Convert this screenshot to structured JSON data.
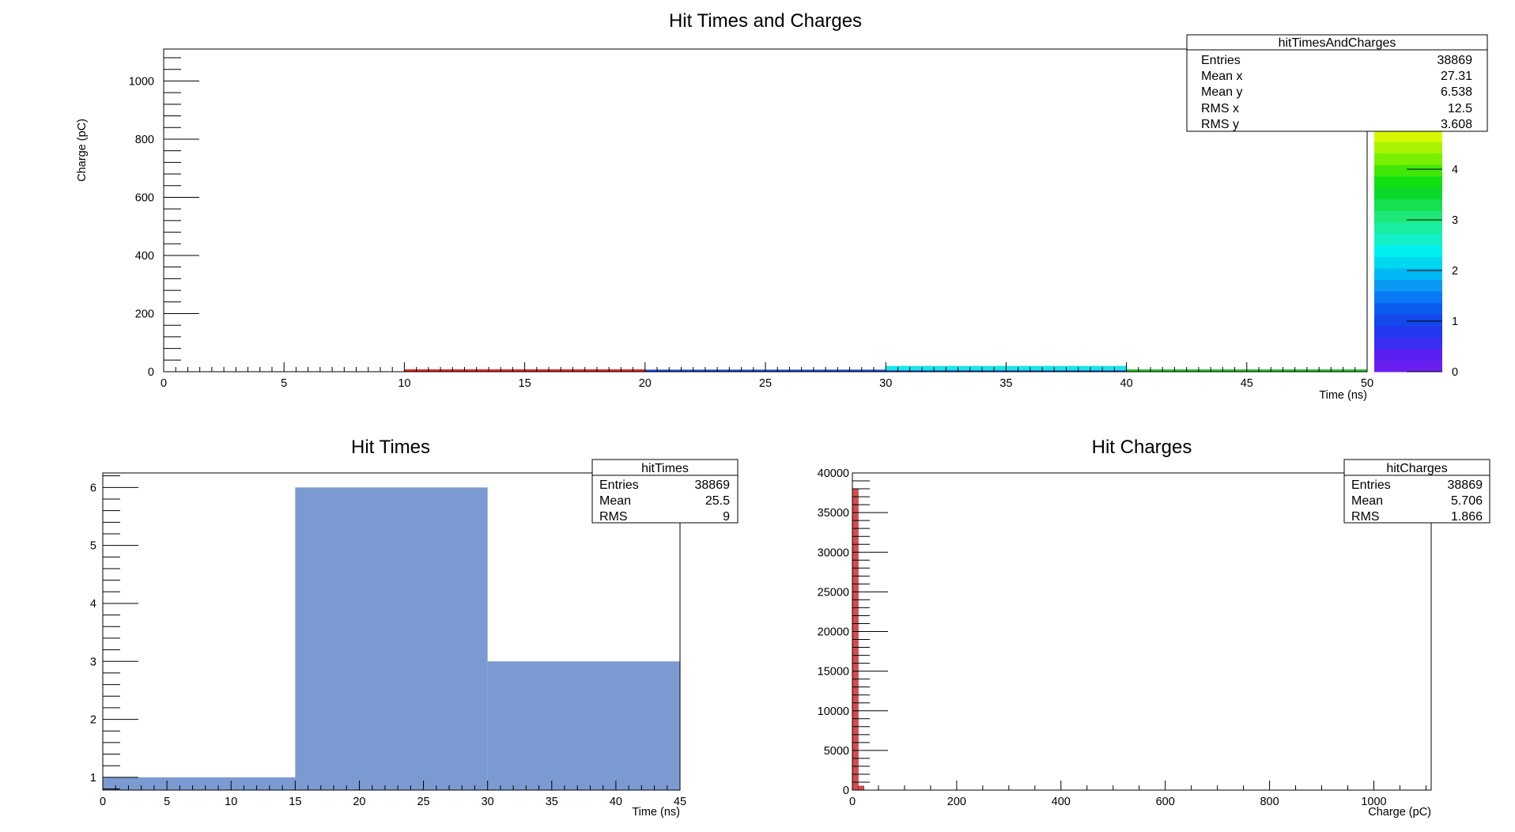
{
  "chart_data": [
    {
      "id": "top",
      "type": "heatmap",
      "title": "Hit Times and Charges",
      "xlabel": "Time (ns)",
      "ylabel": "Charge (pC)",
      "xlim": [
        0,
        50
      ],
      "ylim": [
        0,
        1110
      ],
      "xticks": [
        0,
        5,
        10,
        15,
        20,
        25,
        30,
        35,
        40,
        45,
        50
      ],
      "yticks": [
        0,
        200,
        400,
        600,
        800,
        1000
      ],
      "cells": [
        {
          "x0": 10,
          "x1": 20,
          "y0": 0,
          "y1": 8,
          "level": 1.0,
          "color": "#e0261f"
        },
        {
          "x0": 20,
          "x1": 30,
          "y0": 0,
          "y1": 7,
          "level": 1.0,
          "color": "#1447c9"
        },
        {
          "x0": 30,
          "x1": 40,
          "y0": 0,
          "y1": 5,
          "level": 1.0,
          "color": "#1447c9"
        },
        {
          "x0": 30,
          "x1": 40,
          "y0": 5,
          "y1": 20,
          "level": 2.0,
          "color": "#19e6e6"
        },
        {
          "x0": 40,
          "x1": 50,
          "y0": 0,
          "y1": 8,
          "level": 3.0,
          "color": "#27c42b"
        }
      ],
      "palette": {
        "zlim": [
          0,
          5
        ],
        "ticks": [
          0,
          1,
          2,
          3,
          4
        ],
        "colors": [
          "#6a1ff0",
          "#5a20f2",
          "#3a2ef4",
          "#2238f0",
          "#1448ec",
          "#0a5cf0",
          "#0a78f4",
          "#0a98f4",
          "#00b8f4",
          "#00d8f0",
          "#00f0f0",
          "#14f0c8",
          "#19eea0",
          "#1ee878",
          "#14e050",
          "#0ad82a",
          "#10e010",
          "#40e808",
          "#78f000",
          "#a8f400",
          "#d8f800",
          "#f8f800"
        ]
      },
      "stats": {
        "name": "hitTimesAndCharges",
        "rows": [
          {
            "label": "Entries",
            "value": "38869"
          },
          {
            "label": "Mean x",
            "value": "27.31"
          },
          {
            "label": "Mean y",
            "value": "6.538"
          },
          {
            "label": "RMS x",
            "value": "12.5"
          },
          {
            "label": "RMS y",
            "value": "3.608"
          }
        ]
      }
    },
    {
      "id": "times",
      "type": "bar",
      "title": "Hit Times",
      "xlabel": "Time (ns)",
      "ylabel": "",
      "xlim": [
        0,
        45
      ],
      "ylim": [
        0.78,
        6.25
      ],
      "xticks": [
        0,
        5,
        10,
        15,
        20,
        25,
        30,
        35,
        40,
        45
      ],
      "yticks": [
        1,
        2,
        3,
        4,
        5,
        6
      ],
      "color": "#7b9ad1",
      "bins": [
        {
          "x0": 0,
          "x1": 15,
          "value": 1
        },
        {
          "x0": 15,
          "x1": 30,
          "value": 6
        },
        {
          "x0": 30,
          "x1": 45,
          "value": 3
        }
      ],
      "stats": {
        "name": "hitTimes",
        "rows": [
          {
            "label": "Entries",
            "value": "38869"
          },
          {
            "label": "Mean",
            "value": "25.5"
          },
          {
            "label": "RMS",
            "value": "9"
          }
        ]
      }
    },
    {
      "id": "charges",
      "type": "bar",
      "title": "Hit Charges",
      "xlabel": "Charge (pC)",
      "ylabel": "",
      "xlim": [
        0,
        1110
      ],
      "ylim": [
        0,
        40000
      ],
      "xticks": [
        0,
        200,
        400,
        600,
        800,
        1000
      ],
      "yticks": [
        0,
        5000,
        10000,
        15000,
        20000,
        25000,
        30000,
        35000,
        40000
      ],
      "color": "#d94b4b",
      "bins": [
        {
          "x0": 0,
          "x1": 11.1,
          "value": 38000
        },
        {
          "x0": 11.1,
          "x1": 22.2,
          "value": 500
        },
        {
          "x0": 22.2,
          "x1": 33.3,
          "value": 0
        }
      ],
      "stats": {
        "name": "hitCharges",
        "rows": [
          {
            "label": "Entries",
            "value": "38869"
          },
          {
            "label": "Mean",
            "value": "5.706"
          },
          {
            "label": "RMS",
            "value": "1.866"
          }
        ]
      }
    }
  ]
}
